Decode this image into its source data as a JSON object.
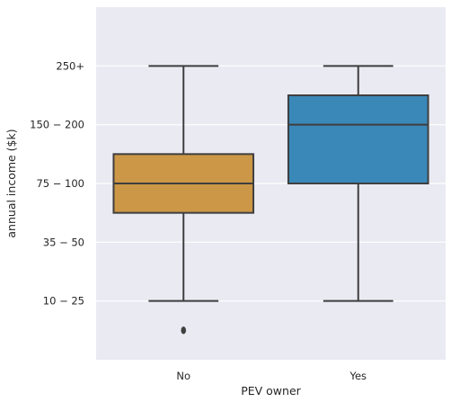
{
  "chart_data": {
    "type": "box",
    "title": "",
    "xlabel": "PEV owner",
    "ylabel": "annual income ($k)",
    "categories": [
      "No",
      "Yes"
    ],
    "ytick_labels": [
      "10 − 25",
      "35 − 50",
      "75 − 100",
      "150 − 200",
      "250+"
    ],
    "ytick_values": [
      1,
      2,
      3,
      4,
      5
    ],
    "ylim": [
      0.0,
      6.0
    ],
    "grid": true,
    "background": "#eaeaf2",
    "boxes": [
      {
        "category": "No",
        "color": "#cc9746",
        "whisker_low": 1,
        "q1": 2.5,
        "median": 3,
        "q3": 3.5,
        "whisker_high": 5,
        "outliers": [
          0.5
        ]
      },
      {
        "category": "Yes",
        "color": "#3a88b8",
        "whisker_low": 1,
        "q1": 3,
        "median": 4,
        "q3": 4.5,
        "whisker_high": 5,
        "outliers": []
      }
    ]
  }
}
